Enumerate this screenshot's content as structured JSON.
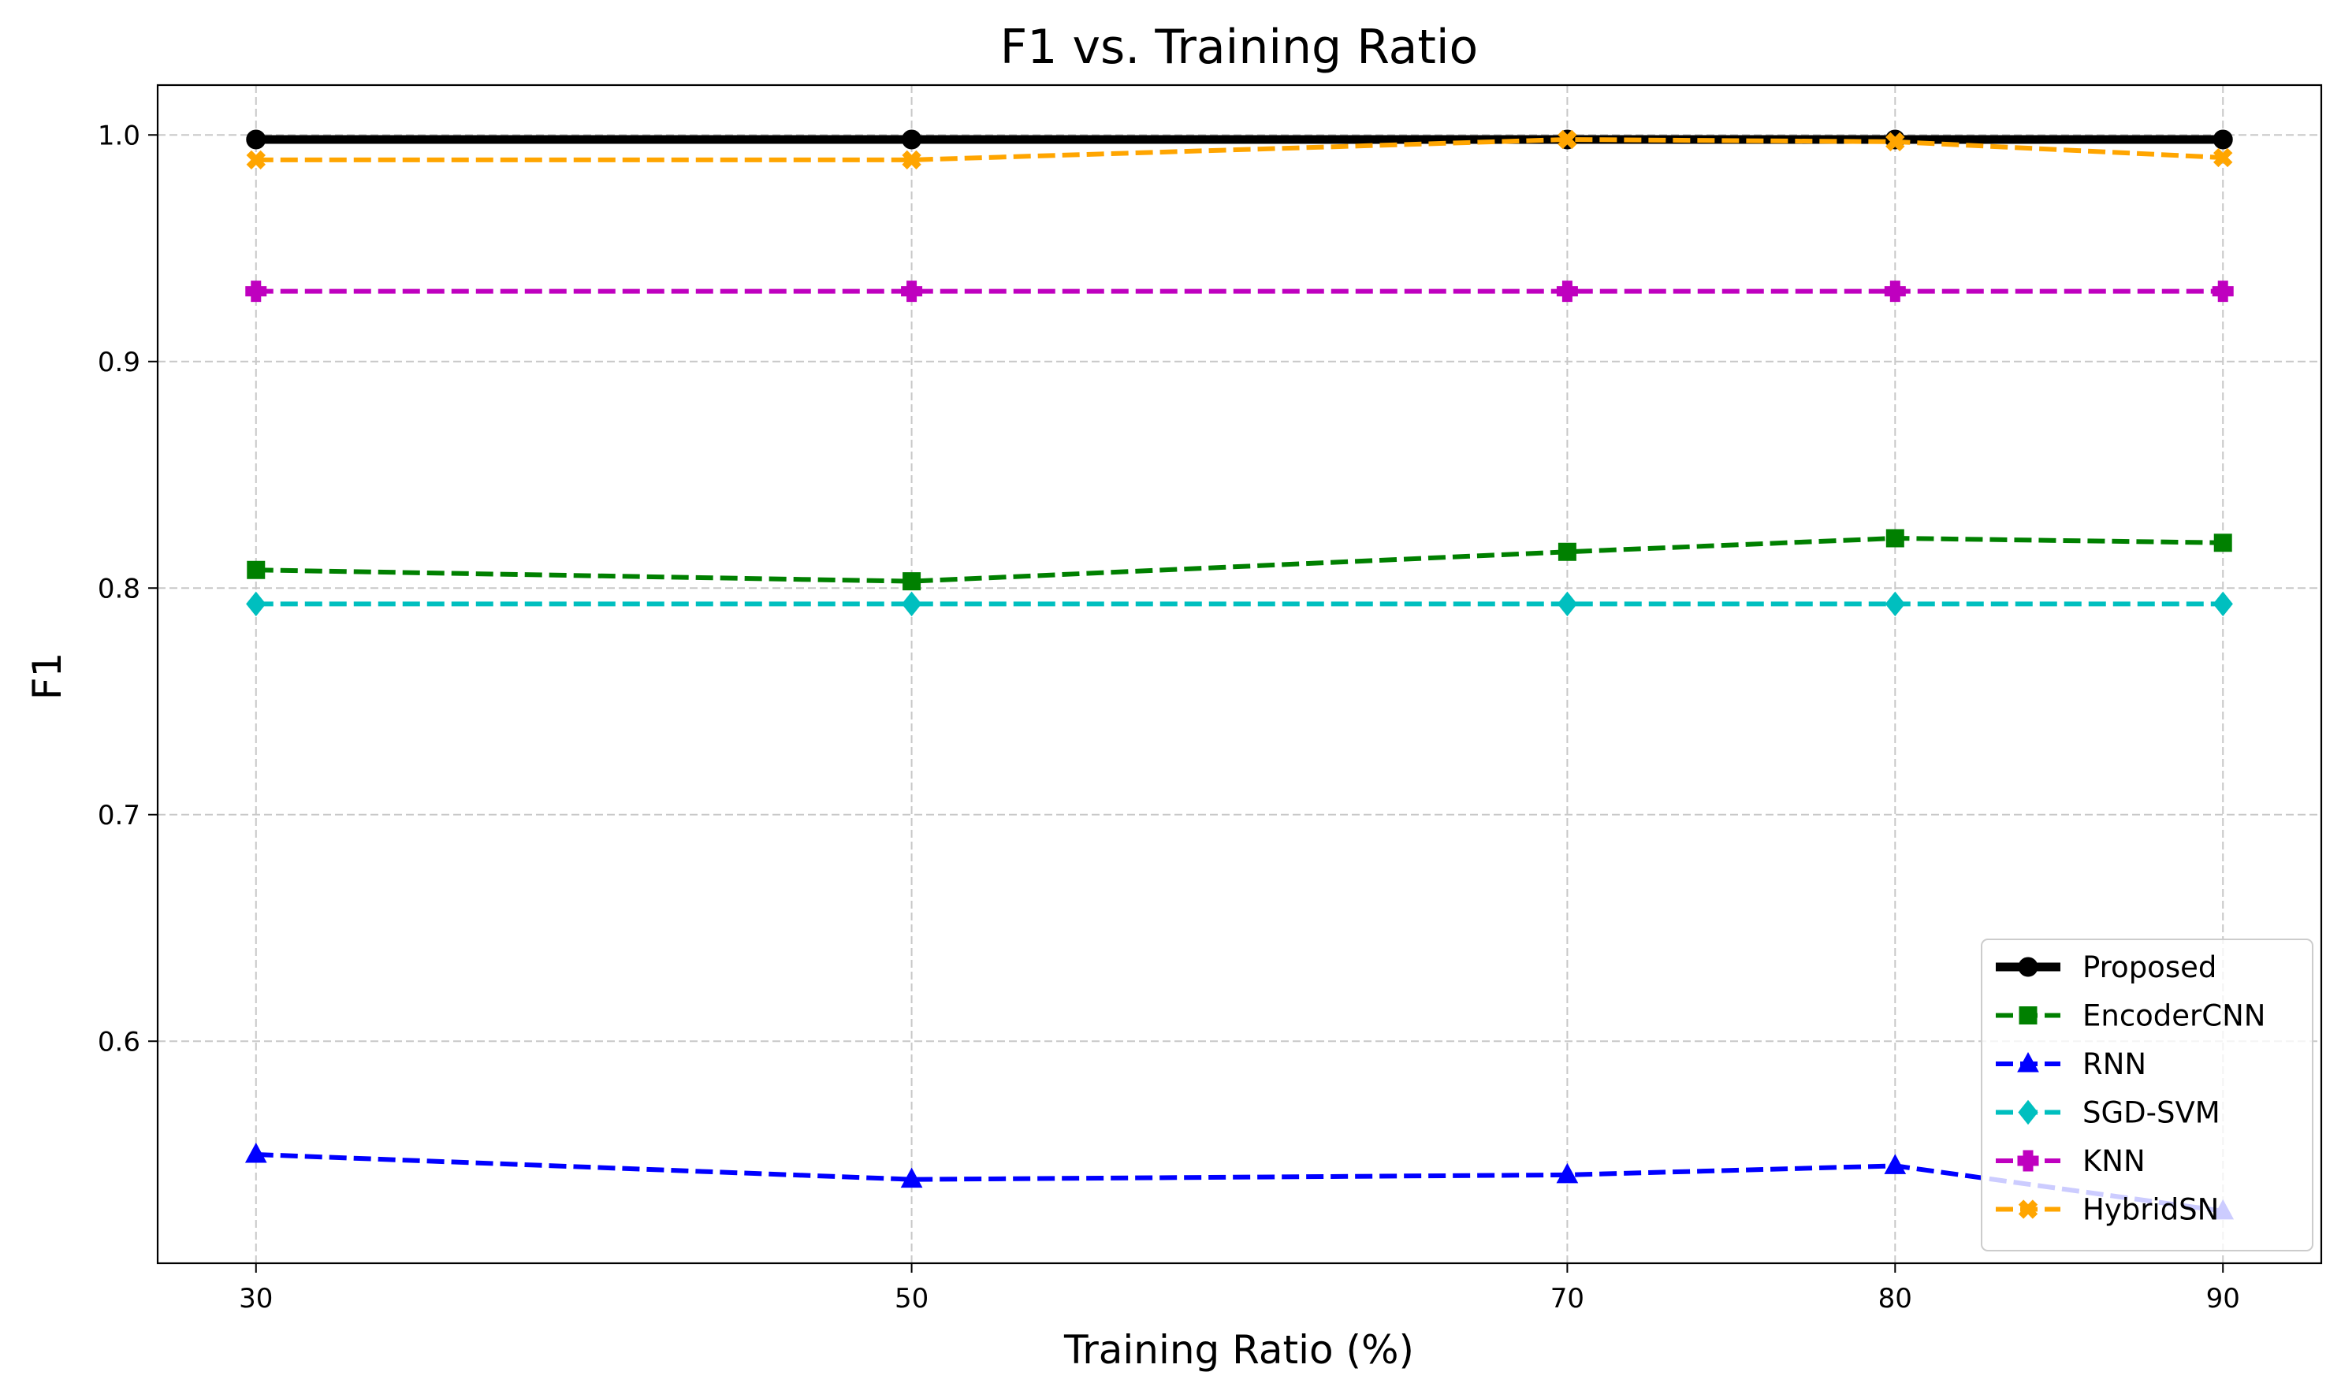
{
  "chart_data": {
    "type": "line",
    "title": "F1 vs. Training Ratio",
    "xlabel": "Training Ratio (%)",
    "ylabel": "F1",
    "x": [
      30,
      50,
      70,
      80,
      90
    ],
    "xticks": [
      "30",
      "50",
      "70",
      "80",
      "90"
    ],
    "yticks": [
      "0.6",
      "0.7",
      "0.8",
      "0.9",
      "1.0"
    ],
    "xlim": [
      27,
      93
    ],
    "ylim": [
      0.502,
      1.022
    ],
    "grid": true,
    "legend_position": "lower-right",
    "series": [
      {
        "name": "Proposed",
        "values": [
          0.998,
          0.998,
          0.998,
          0.998,
          0.998
        ],
        "color": "#000000",
        "marker": "circle",
        "line": "solid"
      },
      {
        "name": "EncoderCNN",
        "values": [
          0.808,
          0.803,
          0.816,
          0.822,
          0.82
        ],
        "color": "#008000",
        "marker": "square",
        "line": "dashed"
      },
      {
        "name": "RNN",
        "values": [
          0.55,
          0.539,
          0.541,
          0.545,
          0.525
        ],
        "color": "#0000ff",
        "marker": "triangle",
        "line": "dashed"
      },
      {
        "name": "SGD-SVM",
        "values": [
          0.793,
          0.793,
          0.793,
          0.793,
          0.793
        ],
        "color": "#00bfbf",
        "marker": "diamond",
        "line": "dashed"
      },
      {
        "name": "KNN",
        "values": [
          0.931,
          0.931,
          0.931,
          0.931,
          0.931
        ],
        "color": "#bf00bf",
        "marker": "plus",
        "line": "dashed"
      },
      {
        "name": "HybridSN",
        "values": [
          0.989,
          0.989,
          0.998,
          0.997,
          0.99
        ],
        "color": "#ffa500",
        "marker": "x",
        "line": "dashed"
      }
    ]
  }
}
